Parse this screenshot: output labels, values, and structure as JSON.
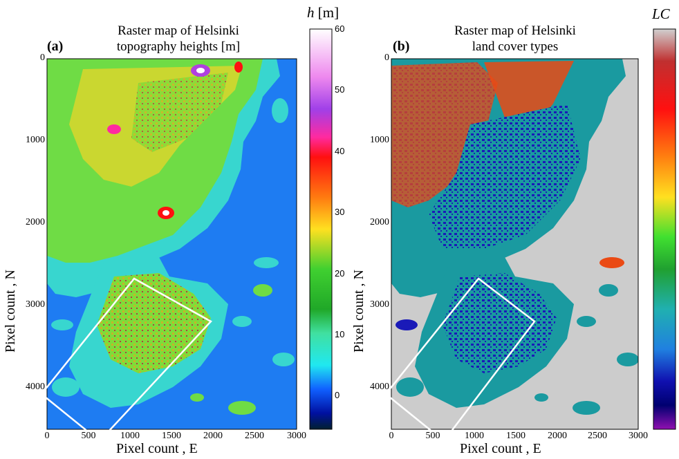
{
  "panel_a": {
    "label": "(a)",
    "title_line1": "Raster map of Helsinki",
    "title_line2": "topography heights [m]",
    "colorbar_symbol": "h",
    "colorbar_unit": "[m]",
    "colorbar_ticks": [
      "60",
      "50",
      "40",
      "30",
      "20",
      "10",
      "0"
    ],
    "xlabel": "Pixel count , E",
    "ylabel": "Pixel count , N"
  },
  "panel_b": {
    "label": "(b)",
    "title_line1": "Raster map of Helsinki",
    "title_line2": "land cover types",
    "colorbar_symbol": "LC",
    "xlabel": "Pixel count , E",
    "ylabel": "Pixel count , N"
  },
  "x_ticks": [
    "0",
    "500",
    "1000",
    "1500",
    "2000",
    "2500",
    "3000"
  ],
  "y_ticks": [
    "0",
    "1000",
    "2000",
    "3000",
    "4000"
  ],
  "colors": {
    "sea_height": "#1e7cf2",
    "sea_landcover": "#cccccc",
    "land_low": "#38d6cf",
    "land_mid": "#6fdc45",
    "land_high": "#e8d62a",
    "landcover_urban": "#1a1ab8",
    "landcover_green": "#1a9aa0",
    "landcover_red": "#ea4a14"
  }
}
